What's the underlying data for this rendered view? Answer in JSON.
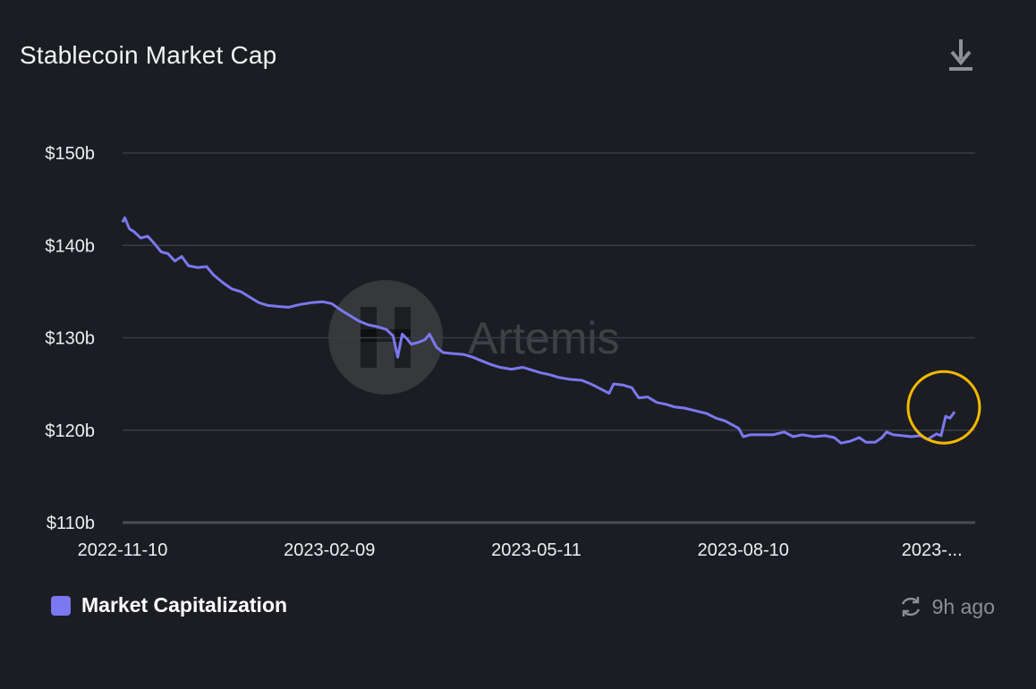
{
  "title": "Stablecoin Market Cap",
  "icons": {
    "download": "download-icon",
    "refresh": "refresh-icon",
    "watermark_logo": "artemis-logo"
  },
  "watermark_text": "Artemis",
  "legend": {
    "label": "Market Capitalization",
    "color": "#7b78f0"
  },
  "updated_text": "9h ago",
  "colors": {
    "background": "#1b1d22",
    "line": "#7b78f0",
    "grid": "#3a3d45",
    "highlight_circle": "#f5b800"
  },
  "chart_data": {
    "type": "line",
    "title": "Stablecoin Market Cap",
    "xlabel": "",
    "ylabel": "",
    "y_tick_labels": [
      "$110b",
      "$120b",
      "$130b",
      "$140b",
      "$150b"
    ],
    "y_ticks": [
      110,
      120,
      130,
      140,
      150
    ],
    "ylim": [
      110,
      150
    ],
    "x_tick_labels": [
      "2022-11-10",
      "2023-02-09",
      "2023-05-11",
      "2023-08-10",
      "2023-..."
    ],
    "x_tick_dates": [
      "2022-11-10",
      "2023-02-09",
      "2023-05-11",
      "2023-08-10",
      "2023-11-01"
    ],
    "xlim": [
      "2022-11-10",
      "2023-11-20"
    ],
    "grid": true,
    "legend_position": "bottom-left",
    "highlight": {
      "shape": "circle",
      "color": "#f5b800",
      "around": "latest rise"
    },
    "series": [
      {
        "name": "Market Capitalization",
        "color": "#7b78f0",
        "points": [
          [
            "2022-11-10",
            142.5
          ],
          [
            "2022-11-11",
            143.0
          ],
          [
            "2022-11-13",
            141.8
          ],
          [
            "2022-11-15",
            141.5
          ],
          [
            "2022-11-18",
            140.8
          ],
          [
            "2022-11-21",
            141.0
          ],
          [
            "2022-11-24",
            140.2
          ],
          [
            "2022-11-27",
            139.3
          ],
          [
            "2022-11-30",
            139.1
          ],
          [
            "2022-12-03",
            138.3
          ],
          [
            "2022-12-06",
            138.8
          ],
          [
            "2022-12-09",
            137.8
          ],
          [
            "2022-12-13",
            137.6
          ],
          [
            "2022-12-17",
            137.7
          ],
          [
            "2022-12-20",
            136.8
          ],
          [
            "2022-12-24",
            136.0
          ],
          [
            "2022-12-28",
            135.3
          ],
          [
            "2023-01-01",
            135.0
          ],
          [
            "2023-01-05",
            134.4
          ],
          [
            "2023-01-09",
            133.8
          ],
          [
            "2023-01-13",
            133.5
          ],
          [
            "2023-01-17",
            133.4
          ],
          [
            "2023-01-22",
            133.3
          ],
          [
            "2023-01-27",
            133.6
          ],
          [
            "2023-02-01",
            133.8
          ],
          [
            "2023-02-06",
            133.9
          ],
          [
            "2023-02-10",
            133.7
          ],
          [
            "2023-02-14",
            133.0
          ],
          [
            "2023-02-18",
            132.4
          ],
          [
            "2023-02-22",
            131.8
          ],
          [
            "2023-02-26",
            131.4
          ],
          [
            "2023-03-02",
            131.2
          ],
          [
            "2023-03-06",
            130.9
          ],
          [
            "2023-03-09",
            130.2
          ],
          [
            "2023-03-11",
            127.9
          ],
          [
            "2023-03-13",
            130.4
          ],
          [
            "2023-03-15",
            129.9
          ],
          [
            "2023-03-17",
            129.3
          ],
          [
            "2023-03-20",
            129.5
          ],
          [
            "2023-03-23",
            129.8
          ],
          [
            "2023-03-25",
            130.4
          ],
          [
            "2023-03-28",
            129.0
          ],
          [
            "2023-03-31",
            128.4
          ],
          [
            "2023-04-04",
            128.3
          ],
          [
            "2023-04-09",
            128.2
          ],
          [
            "2023-04-13",
            127.9
          ],
          [
            "2023-04-17",
            127.5
          ],
          [
            "2023-04-21",
            127.1
          ],
          [
            "2023-04-25",
            126.8
          ],
          [
            "2023-04-30",
            126.6
          ],
          [
            "2023-05-05",
            126.8
          ],
          [
            "2023-05-09",
            126.5
          ],
          [
            "2023-05-13",
            126.2
          ],
          [
            "2023-05-17",
            126.0
          ],
          [
            "2023-05-21",
            125.7
          ],
          [
            "2023-05-26",
            125.5
          ],
          [
            "2023-05-31",
            125.4
          ],
          [
            "2023-06-04",
            125.0
          ],
          [
            "2023-06-08",
            124.5
          ],
          [
            "2023-06-12",
            124.0
          ],
          [
            "2023-06-14",
            125.0
          ],
          [
            "2023-06-18",
            124.9
          ],
          [
            "2023-06-22",
            124.6
          ],
          [
            "2023-06-25",
            123.5
          ],
          [
            "2023-06-29",
            123.6
          ],
          [
            "2023-07-03",
            123.0
          ],
          [
            "2023-07-07",
            122.8
          ],
          [
            "2023-07-11",
            122.5
          ],
          [
            "2023-07-15",
            122.4
          ],
          [
            "2023-07-20",
            122.1
          ],
          [
            "2023-07-25",
            121.8
          ],
          [
            "2023-07-29",
            121.3
          ],
          [
            "2023-08-02",
            121.0
          ],
          [
            "2023-08-05",
            120.6
          ],
          [
            "2023-08-08",
            120.2
          ],
          [
            "2023-08-10",
            119.3
          ],
          [
            "2023-08-13",
            119.5
          ],
          [
            "2023-08-18",
            119.5
          ],
          [
            "2023-08-23",
            119.5
          ],
          [
            "2023-08-28",
            119.8
          ],
          [
            "2023-09-01",
            119.3
          ],
          [
            "2023-09-05",
            119.5
          ],
          [
            "2023-09-10",
            119.3
          ],
          [
            "2023-09-15",
            119.4
          ],
          [
            "2023-09-19",
            119.2
          ],
          [
            "2023-09-22",
            118.6
          ],
          [
            "2023-09-26",
            118.8
          ],
          [
            "2023-09-30",
            119.2
          ],
          [
            "2023-10-03",
            118.7
          ],
          [
            "2023-10-07",
            118.7
          ],
          [
            "2023-10-10",
            119.2
          ],
          [
            "2023-10-12",
            119.8
          ],
          [
            "2023-10-15",
            119.5
          ],
          [
            "2023-10-19",
            119.4
          ],
          [
            "2023-10-23",
            119.3
          ],
          [
            "2023-10-27",
            119.4
          ],
          [
            "2023-10-30",
            119.0
          ],
          [
            "2023-11-03",
            119.6
          ],
          [
            "2023-11-05",
            119.4
          ],
          [
            "2023-11-07",
            121.5
          ],
          [
            "2023-11-09",
            121.3
          ],
          [
            "2023-11-11",
            122.0
          ]
        ]
      }
    ]
  }
}
